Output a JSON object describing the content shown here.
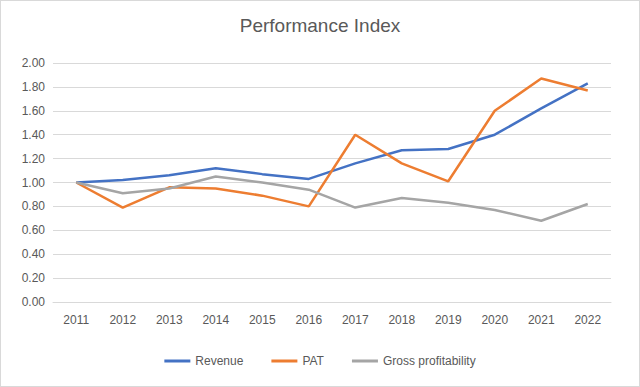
{
  "chart_data": {
    "type": "line",
    "title": "Performance Index",
    "categories": [
      "2011",
      "2012",
      "2013",
      "2014",
      "2015",
      "2016",
      "2017",
      "2018",
      "2019",
      "2020",
      "2021",
      "2022"
    ],
    "series": [
      {
        "name": "Revenue",
        "color": "#4472c4",
        "values": [
          1.0,
          1.02,
          1.06,
          1.12,
          1.07,
          1.03,
          1.16,
          1.27,
          1.28,
          1.4,
          1.62,
          1.83
        ]
      },
      {
        "name": "PAT",
        "color": "#ed7d31",
        "values": [
          1.0,
          0.79,
          0.96,
          0.95,
          0.89,
          0.8,
          1.4,
          1.16,
          1.01,
          1.6,
          1.87,
          1.77
        ]
      },
      {
        "name": "Gross profitability",
        "color": "#a5a5a5",
        "values": [
          1.0,
          0.91,
          0.95,
          1.05,
          1.0,
          0.94,
          0.79,
          0.87,
          0.83,
          0.77,
          0.68,
          0.82
        ]
      }
    ],
    "ylim": [
      0,
      2
    ],
    "yticks": [
      {
        "value": 0,
        "label": "0.00"
      },
      {
        "value": 0.2,
        "label": "0.20"
      },
      {
        "value": 0.4,
        "label": "0.40"
      },
      {
        "value": 0.6,
        "label": "0.60"
      },
      {
        "value": 0.8,
        "label": "0.80"
      },
      {
        "value": 1.0,
        "label": "1.00"
      },
      {
        "value": 1.2,
        "label": "1.20"
      },
      {
        "value": 1.4,
        "label": "1.40"
      },
      {
        "value": 1.6,
        "label": "1.60"
      },
      {
        "value": 1.8,
        "label": "1.80"
      },
      {
        "value": 2.0,
        "label": "2.00"
      }
    ],
    "grid": true,
    "legend": "bottom"
  }
}
